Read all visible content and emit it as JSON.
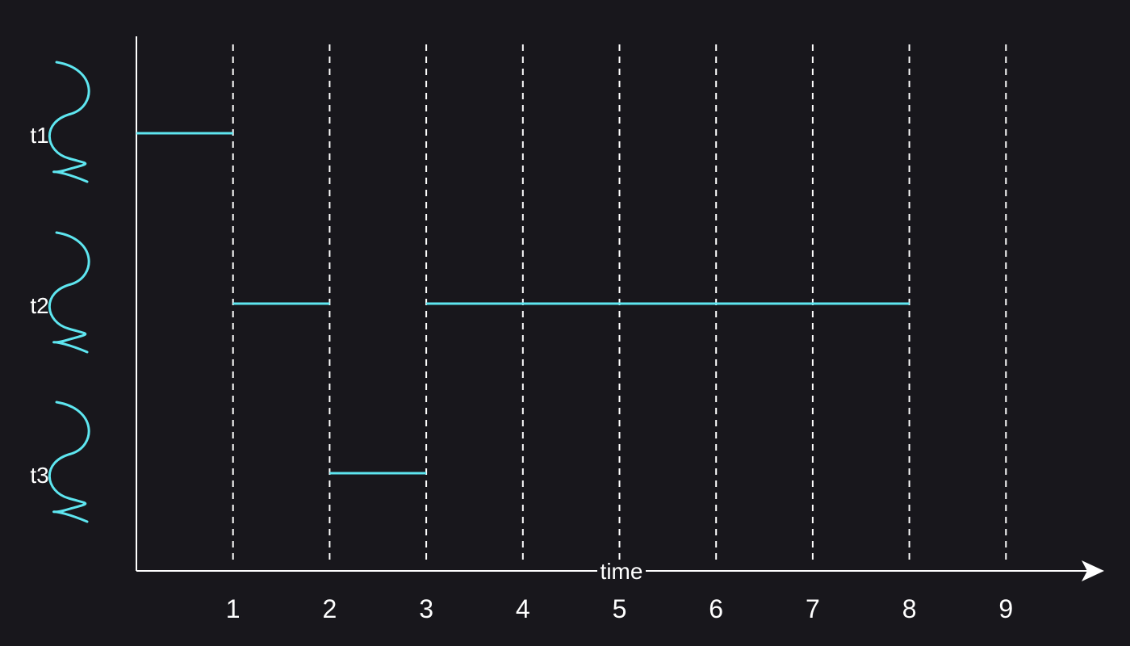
{
  "chart_data": {
    "type": "timeline",
    "xlabel": "time",
    "ticks": [
      "1",
      "2",
      "3",
      "4",
      "5",
      "6",
      "7",
      "8",
      "9"
    ],
    "xlim": [
      0,
      9
    ],
    "threads": [
      {
        "name": "t1",
        "segments": [
          [
            0,
            1
          ]
        ]
      },
      {
        "name": "t2",
        "segments": [
          [
            1,
            2
          ],
          [
            3,
            8
          ]
        ]
      },
      {
        "name": "t3",
        "segments": [
          [
            2,
            3
          ]
        ]
      }
    ],
    "grid": "dashed vertical at each tick"
  },
  "colors": {
    "background": "#18171c",
    "foreground": "#ffffff",
    "accent": "#5ee6f0"
  },
  "icons": {
    "thread": "wavy-thread-icon",
    "arrow": "arrowhead-icon"
  }
}
